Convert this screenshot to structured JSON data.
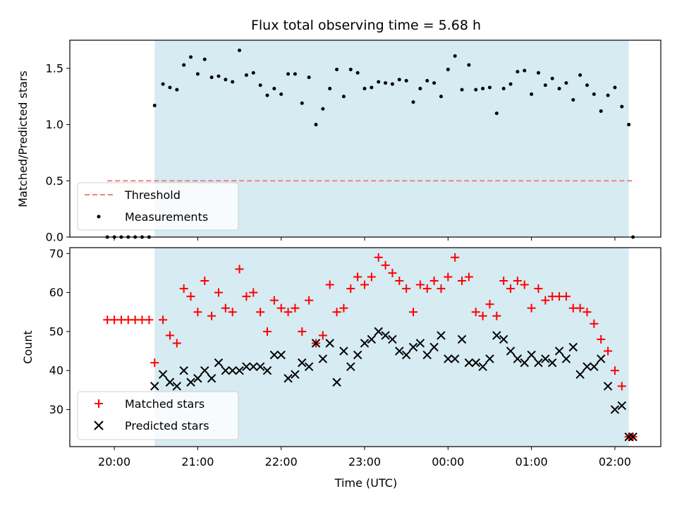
{
  "title": "Flux total observing time = 5.68 h",
  "chart_data": [
    {
      "type": "scatter",
      "panel": "top",
      "ylabel": "Matched/Predicted stars",
      "ylim": [
        0,
        1.75
      ],
      "yticks": [
        0,
        0.5,
        1.0,
        1.5
      ],
      "ytick_labels": [
        "0.0",
        "0.5",
        "1.0",
        "1.5"
      ],
      "threshold": 0.5,
      "threshold_color": "#f08080",
      "shaded_color": "#add8e6",
      "observing_window": [
        "20:29",
        "02:10"
      ],
      "series": [
        {
          "name": "Measurements",
          "marker": "dot",
          "color": "#000000",
          "x": [
            "19:55",
            "20:00",
            "20:05",
            "20:10",
            "20:15",
            "20:20",
            "20:25",
            "20:29",
            "20:35",
            "20:40",
            "20:45",
            "20:50",
            "20:55",
            "21:00",
            "21:05",
            "21:10",
            "21:15",
            "21:20",
            "21:25",
            "21:30",
            "21:35",
            "21:40",
            "21:45",
            "21:50",
            "21:55",
            "22:00",
            "22:05",
            "22:10",
            "22:15",
            "22:20",
            "22:25",
            "22:30",
            "22:35",
            "22:40",
            "22:45",
            "22:50",
            "22:55",
            "23:00",
            "23:05",
            "23:10",
            "23:15",
            "23:20",
            "23:25",
            "23:30",
            "23:35",
            "23:40",
            "23:45",
            "23:50",
            "23:55",
            "00:00",
            "00:05",
            "00:10",
            "00:15",
            "00:20",
            "00:25",
            "00:30",
            "00:35",
            "00:40",
            "00:45",
            "00:50",
            "00:55",
            "01:00",
            "01:05",
            "01:10",
            "01:15",
            "01:20",
            "01:25",
            "01:30",
            "01:35",
            "01:40",
            "01:45",
            "01:50",
            "01:55",
            "02:00",
            "02:05",
            "02:10",
            "02:13"
          ],
          "y": [
            0,
            0,
            0,
            0,
            0,
            0,
            0,
            1.17,
            1.36,
            1.33,
            1.31,
            1.53,
            1.6,
            1.45,
            1.58,
            1.42,
            1.43,
            1.4,
            1.38,
            1.66,
            1.44,
            1.46,
            1.35,
            1.26,
            1.32,
            1.27,
            1.45,
            1.45,
            1.19,
            1.42,
            1.0,
            1.14,
            1.32,
            1.49,
            1.25,
            1.49,
            1.46,
            1.32,
            1.33,
            1.38,
            1.37,
            1.36,
            1.4,
            1.39,
            1.2,
            1.32,
            1.39,
            1.37,
            1.25,
            1.49,
            1.61,
            1.31,
            1.53,
            1.31,
            1.32,
            1.33,
            1.1,
            1.32,
            1.36,
            1.47,
            1.48,
            1.27,
            1.46,
            1.35,
            1.41,
            1.32,
            1.37,
            1.22,
            1.44,
            1.35,
            1.27,
            1.12,
            1.26,
            1.33,
            1.16,
            1.0,
            0
          ]
        }
      ],
      "threshold_name": "Threshold",
      "legend": "lower-left"
    },
    {
      "type": "scatter",
      "panel": "bottom",
      "xlabel": "Time (UTC)",
      "ylabel": "Count",
      "ylim": [
        20.5,
        71.5
      ],
      "yticks": [
        30,
        40,
        50,
        60,
        70
      ],
      "xticks": [
        "20:00",
        "21:00",
        "22:00",
        "23:00",
        "00:00",
        "01:00",
        "02:00"
      ],
      "xlim": [
        "19:28",
        "02:33"
      ],
      "series": [
        {
          "name": "Matched stars",
          "marker": "plus",
          "color": "#ff0000",
          "x": [
            "19:55",
            "20:00",
            "20:05",
            "20:10",
            "20:15",
            "20:20",
            "20:25",
            "20:29",
            "20:35",
            "20:40",
            "20:45",
            "20:50",
            "20:55",
            "21:00",
            "21:05",
            "21:10",
            "21:15",
            "21:20",
            "21:25",
            "21:30",
            "21:35",
            "21:40",
            "21:45",
            "21:50",
            "21:55",
            "22:00",
            "22:05",
            "22:10",
            "22:15",
            "22:20",
            "22:25",
            "22:30",
            "22:35",
            "22:40",
            "22:45",
            "22:50",
            "22:55",
            "23:00",
            "23:05",
            "23:10",
            "23:15",
            "23:20",
            "23:25",
            "23:30",
            "23:35",
            "23:40",
            "23:45",
            "23:50",
            "23:55",
            "00:00",
            "00:05",
            "00:10",
            "00:15",
            "00:20",
            "00:25",
            "00:30",
            "00:35",
            "00:40",
            "00:45",
            "00:50",
            "00:55",
            "01:00",
            "01:05",
            "01:10",
            "01:15",
            "01:20",
            "01:25",
            "01:30",
            "01:35",
            "01:40",
            "01:45",
            "01:50",
            "01:55",
            "02:00",
            "02:05",
            "02:10",
            "02:13"
          ],
          "y": [
            53,
            53,
            53,
            53,
            53,
            53,
            53,
            42,
            53,
            49,
            47,
            61,
            59,
            55,
            63,
            54,
            60,
            56,
            55,
            66,
            59,
            60,
            55,
            50,
            58,
            56,
            55,
            56,
            50,
            58,
            47,
            49,
            62,
            55,
            56,
            61,
            64,
            62,
            64,
            69,
            67,
            65,
            63,
            61,
            55,
            62,
            61,
            63,
            61,
            64,
            69,
            63,
            64,
            55,
            54,
            57,
            54,
            63,
            61,
            63,
            62,
            56,
            61,
            58,
            59,
            59,
            59,
            56,
            56,
            55,
            52,
            48,
            45,
            40,
            36,
            23,
            23
          ]
        },
        {
          "name": "Predicted stars",
          "marker": "x",
          "color": "#000000",
          "x": [
            "20:29",
            "20:35",
            "20:40",
            "20:45",
            "20:50",
            "20:55",
            "21:00",
            "21:05",
            "21:10",
            "21:15",
            "21:20",
            "21:25",
            "21:30",
            "21:35",
            "21:40",
            "21:45",
            "21:50",
            "21:55",
            "22:00",
            "22:05",
            "22:10",
            "22:15",
            "22:20",
            "22:25",
            "22:30",
            "22:35",
            "22:40",
            "22:45",
            "22:50",
            "22:55",
            "23:00",
            "23:05",
            "23:10",
            "23:15",
            "23:20",
            "23:25",
            "23:30",
            "23:35",
            "23:40",
            "23:45",
            "23:50",
            "23:55",
            "00:00",
            "00:05",
            "00:10",
            "00:15",
            "00:20",
            "00:25",
            "00:30",
            "00:35",
            "00:40",
            "00:45",
            "00:50",
            "00:55",
            "01:00",
            "01:05",
            "01:10",
            "01:15",
            "01:20",
            "01:25",
            "01:30",
            "01:35",
            "01:40",
            "01:45",
            "01:50",
            "01:55",
            "02:00",
            "02:05",
            "02:10",
            "02:13"
          ],
          "y": [
            36,
            39,
            37,
            36,
            40,
            37,
            38,
            40,
            38,
            42,
            40,
            40,
            40,
            41,
            41,
            41,
            40,
            44,
            44,
            38,
            39,
            42,
            41,
            47,
            43,
            47,
            37,
            45,
            41,
            44,
            47,
            48,
            50,
            49,
            48,
            45,
            44,
            46,
            47,
            44,
            46,
            49,
            43,
            43,
            48,
            42,
            42,
            41,
            43,
            49,
            48,
            45,
            43,
            42,
            44,
            42,
            43,
            42,
            45,
            43,
            46,
            39,
            41,
            41,
            43,
            36,
            30,
            31,
            23,
            23
          ]
        }
      ],
      "legend": "lower-left"
    }
  ]
}
